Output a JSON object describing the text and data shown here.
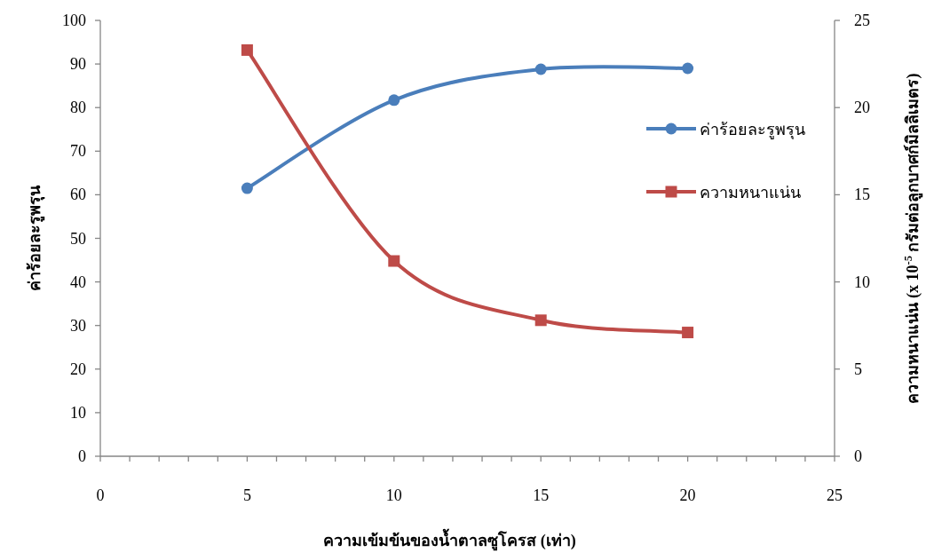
{
  "chart_data": {
    "type": "line",
    "xlabel": "ความเข้มข้นของน้ำตาลซูโครส (เท่า)",
    "ylabel": "ค่าร้อยละรูพรุน",
    "y2label": "ความหนาแน่น (x 10$^{-5}$ กรัมต่อลูกบาศก์มิลลิเมตร)",
    "x": [
      5,
      10,
      15,
      20
    ],
    "series": [
      {
        "name": "ค่าร้อยละรูพรุน",
        "color": "#4a7ebb",
        "marker": "circle",
        "values": [
          61.5,
          81.7,
          88.8,
          89.0
        ]
      },
      {
        "name": "ความหนาแน่น",
        "color": "#be4b48",
        "marker": "square",
        "axis": "y2",
        "values": [
          23.3,
          11.2,
          7.8,
          7.1
        ]
      }
    ],
    "xlim": [
      0,
      25
    ],
    "xticks": [
      0,
      {
        "value": 1,
        "label": null
      },
      {
        "value": 2,
        "label": null
      },
      {
        "value": 3,
        "label": null
      },
      {
        "value": 4,
        "label": null
      },
      5,
      {
        "value": 6,
        "label": null
      },
      {
        "value": 7,
        "label": null
      },
      {
        "value": 8,
        "label": null
      },
      {
        "value": 9,
        "label": null
      },
      10,
      {
        "value": 11,
        "label": null
      },
      {
        "value": 12,
        "label": null
      },
      {
        "value": 13,
        "label": null
      },
      {
        "value": 14,
        "label": null
      },
      15,
      {
        "value": 16,
        "label": null
      },
      {
        "value": 17,
        "label": null
      },
      {
        "value": 18,
        "label": null
      },
      {
        "value": 19,
        "label": null
      },
      20,
      {
        "value": 21,
        "label": null
      },
      {
        "value": 22,
        "label": null
      },
      {
        "value": 23,
        "label": null
      },
      {
        "value": 24,
        "label": null
      },
      25
    ],
    "ylim": [
      0,
      100
    ],
    "yticks": [
      0,
      10,
      20,
      30,
      40,
      50,
      60,
      70,
      80,
      90,
      100
    ],
    "y2lim": [
      0,
      25
    ],
    "y2ticks": [
      0,
      5,
      10,
      15,
      20,
      25
    ],
    "legend": "right",
    "grid": false,
    "line_style": "solid"
  }
}
